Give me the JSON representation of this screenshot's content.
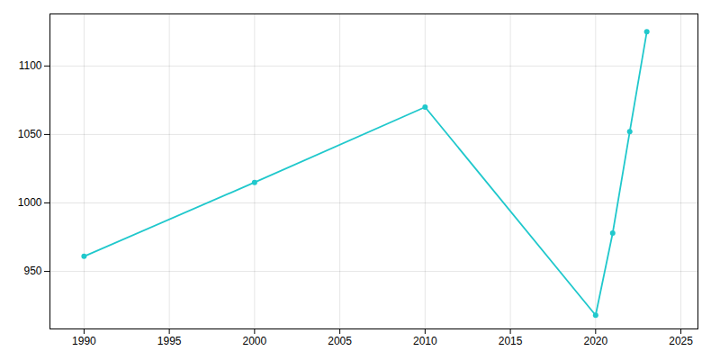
{
  "chart_data": {
    "type": "line",
    "x": [
      1990,
      2000,
      2010,
      2020,
      2021,
      2022,
      2023
    ],
    "values": [
      961,
      1015,
      1070,
      918,
      978,
      1052,
      1125
    ],
    "color": "#20C8CC",
    "marker": "circle",
    "xlim": [
      1988,
      2026
    ],
    "ylim": [
      908,
      1138
    ],
    "xticks": [
      1990,
      1995,
      2000,
      2005,
      2010,
      2015,
      2020,
      2025
    ],
    "yticks": [
      950,
      1000,
      1050,
      1100
    ],
    "grid": true
  }
}
